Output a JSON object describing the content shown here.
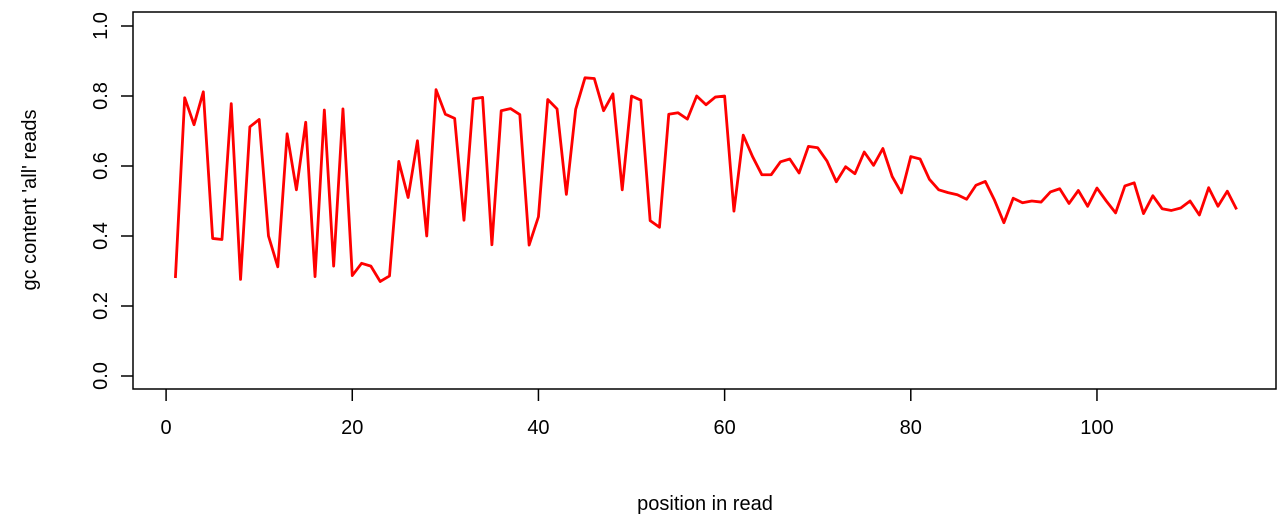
{
  "chart_data": {
    "type": "line",
    "title": "",
    "xlabel": "position in read",
    "ylabel": "gc content 'all' reads",
    "xlim": [
      1,
      115
    ],
    "ylim": [
      0.0,
      1.0
    ],
    "x_ticks": [
      0,
      20,
      40,
      60,
      80,
      100
    ],
    "x_tick_labels": [
      "0",
      "20",
      "40",
      "60",
      "80",
      "100"
    ],
    "y_ticks": [
      0.0,
      0.2,
      0.4,
      0.6,
      0.8,
      1.0
    ],
    "y_tick_labels": [
      "0.0",
      "0.2",
      "0.4",
      "0.6",
      "0.8",
      "1.0"
    ],
    "grid": false,
    "series": [
      {
        "color": "#ff0000",
        "x": [
          1,
          2,
          3,
          4,
          5,
          6,
          7,
          8,
          9,
          10,
          11,
          12,
          13,
          14,
          15,
          16,
          17,
          18,
          19,
          20,
          21,
          22,
          23,
          24,
          25,
          26,
          27,
          28,
          29,
          30,
          31,
          32,
          33,
          34,
          35,
          36,
          37,
          38,
          39,
          40,
          41,
          42,
          43,
          44,
          45,
          46,
          47,
          48,
          49,
          50,
          51,
          52,
          53,
          54,
          55,
          56,
          57,
          58,
          59,
          60,
          61,
          62,
          63,
          64,
          65,
          66,
          67,
          68,
          69,
          70,
          71,
          72,
          73,
          74,
          75,
          76,
          77,
          78,
          79,
          80,
          81,
          82,
          83,
          84,
          85,
          86,
          87,
          88,
          89,
          90,
          91,
          92,
          93,
          94,
          95,
          96,
          97,
          98,
          99,
          100,
          101,
          102,
          103,
          104,
          105,
          106,
          107,
          108,
          109,
          110,
          111,
          112,
          113,
          114,
          115
        ],
        "values": [
          0.28,
          0.795,
          0.718,
          0.812,
          0.393,
          0.39,
          0.778,
          0.276,
          0.712,
          0.733,
          0.4,
          0.312,
          0.692,
          0.532,
          0.725,
          0.284,
          0.76,
          0.314,
          0.763,
          0.287,
          0.322,
          0.314,
          0.27,
          0.286,
          0.613,
          0.51,
          0.672,
          0.4,
          0.818,
          0.748,
          0.736,
          0.445,
          0.792,
          0.796,
          0.375,
          0.758,
          0.764,
          0.747,
          0.374,
          0.455,
          0.79,
          0.763,
          0.519,
          0.762,
          0.852,
          0.85,
          0.758,
          0.806,
          0.532,
          0.8,
          0.788,
          0.444,
          0.425,
          0.748,
          0.752,
          0.734,
          0.8,
          0.775,
          0.797,
          0.8,
          0.471,
          0.688,
          0.627,
          0.575,
          0.575,
          0.612,
          0.62,
          0.58,
          0.656,
          0.652,
          0.614,
          0.555,
          0.598,
          0.578,
          0.64,
          0.602,
          0.65,
          0.57,
          0.523,
          0.627,
          0.62,
          0.562,
          0.532,
          0.524,
          0.518,
          0.505,
          0.545,
          0.556,
          0.502,
          0.438,
          0.508,
          0.495,
          0.5,
          0.497,
          0.526,
          0.535,
          0.493,
          0.53,
          0.485,
          0.537,
          0.5,
          0.466,
          0.543,
          0.552,
          0.464,
          0.515,
          0.478,
          0.473,
          0.48,
          0.5,
          0.46,
          0.538,
          0.485,
          0.528,
          0.476
        ]
      }
    ]
  }
}
